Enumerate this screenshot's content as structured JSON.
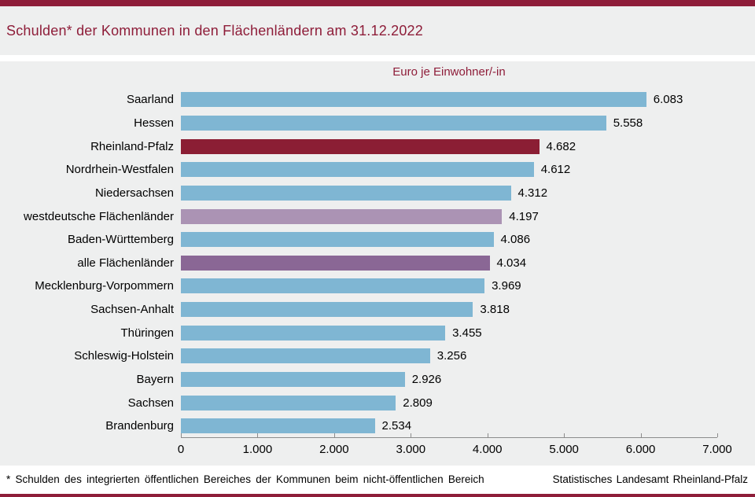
{
  "header": {
    "title": "Schulden* der Kommunen in den Flächenländern am 31.12.2022"
  },
  "chart": {
    "unit_label": "Euro je Einwohner/-in"
  },
  "chart_data": {
    "type": "bar",
    "orientation": "horizontal",
    "title": "Schulden* der Kommunen in den Flächenländern am 31.12.2022",
    "xlabel": "Euro je Einwohner/-in",
    "ylabel": "",
    "xlim": [
      0,
      7000
    ],
    "x_ticks": [
      "0",
      "1.000",
      "2.000",
      "3.000",
      "4.000",
      "5.000",
      "6.000",
      "7.000"
    ],
    "grid": false,
    "legend": "none",
    "rows": [
      {
        "label": "Saarland",
        "value": 6083,
        "display": "6.083",
        "role": "state"
      },
      {
        "label": "Hessen",
        "value": 5558,
        "display": "5.558",
        "role": "state"
      },
      {
        "label": "Rheinland-Pfalz",
        "value": 4682,
        "display": "4.682",
        "role": "highlight"
      },
      {
        "label": "Nordrhein-Westfalen",
        "value": 4612,
        "display": "4.612",
        "role": "state"
      },
      {
        "label": "Niedersachsen",
        "value": 4312,
        "display": "4.312",
        "role": "state"
      },
      {
        "label": "westdeutsche Flächenländer",
        "value": 4197,
        "display": "4.197",
        "role": "aggregate_west"
      },
      {
        "label": "Baden-Württemberg",
        "value": 4086,
        "display": "4.086",
        "role": "state"
      },
      {
        "label": "alle Flächenländer",
        "value": 4034,
        "display": "4.034",
        "role": "aggregate_all"
      },
      {
        "label": "Mecklenburg-Vorpommern",
        "value": 3969,
        "display": "3.969",
        "role": "state"
      },
      {
        "label": "Sachsen-Anhalt",
        "value": 3818,
        "display": "3.818",
        "role": "state"
      },
      {
        "label": "Thüringen",
        "value": 3455,
        "display": "3.455",
        "role": "state"
      },
      {
        "label": "Schleswig-Holstein",
        "value": 3256,
        "display": "3.256",
        "role": "state"
      },
      {
        "label": "Bayern",
        "value": 2926,
        "display": "2.926",
        "role": "state"
      },
      {
        "label": "Sachsen",
        "value": 2809,
        "display": "2.809",
        "role": "state"
      },
      {
        "label": "Brandenburg",
        "value": 2534,
        "display": "2.534",
        "role": "state"
      }
    ]
  },
  "colors": {
    "accent_red": "#8e1d39",
    "bar_state": "#7fb6d3",
    "bar_highlight": "#8b1e34",
    "bar_aggregate_west": "#ab93b4",
    "bar_aggregate_all": "#8a6795",
    "panel_background": "#eeefef",
    "axis_line": "#8c8c8c",
    "text": "#000000"
  },
  "footer": {
    "footnote": "* Schulden des integrierten öffentlichen Bereiches der Kommunen beim nicht-öffentlichen Bereich",
    "source": "Statistisches Landesamt Rheinland-Pfalz"
  }
}
